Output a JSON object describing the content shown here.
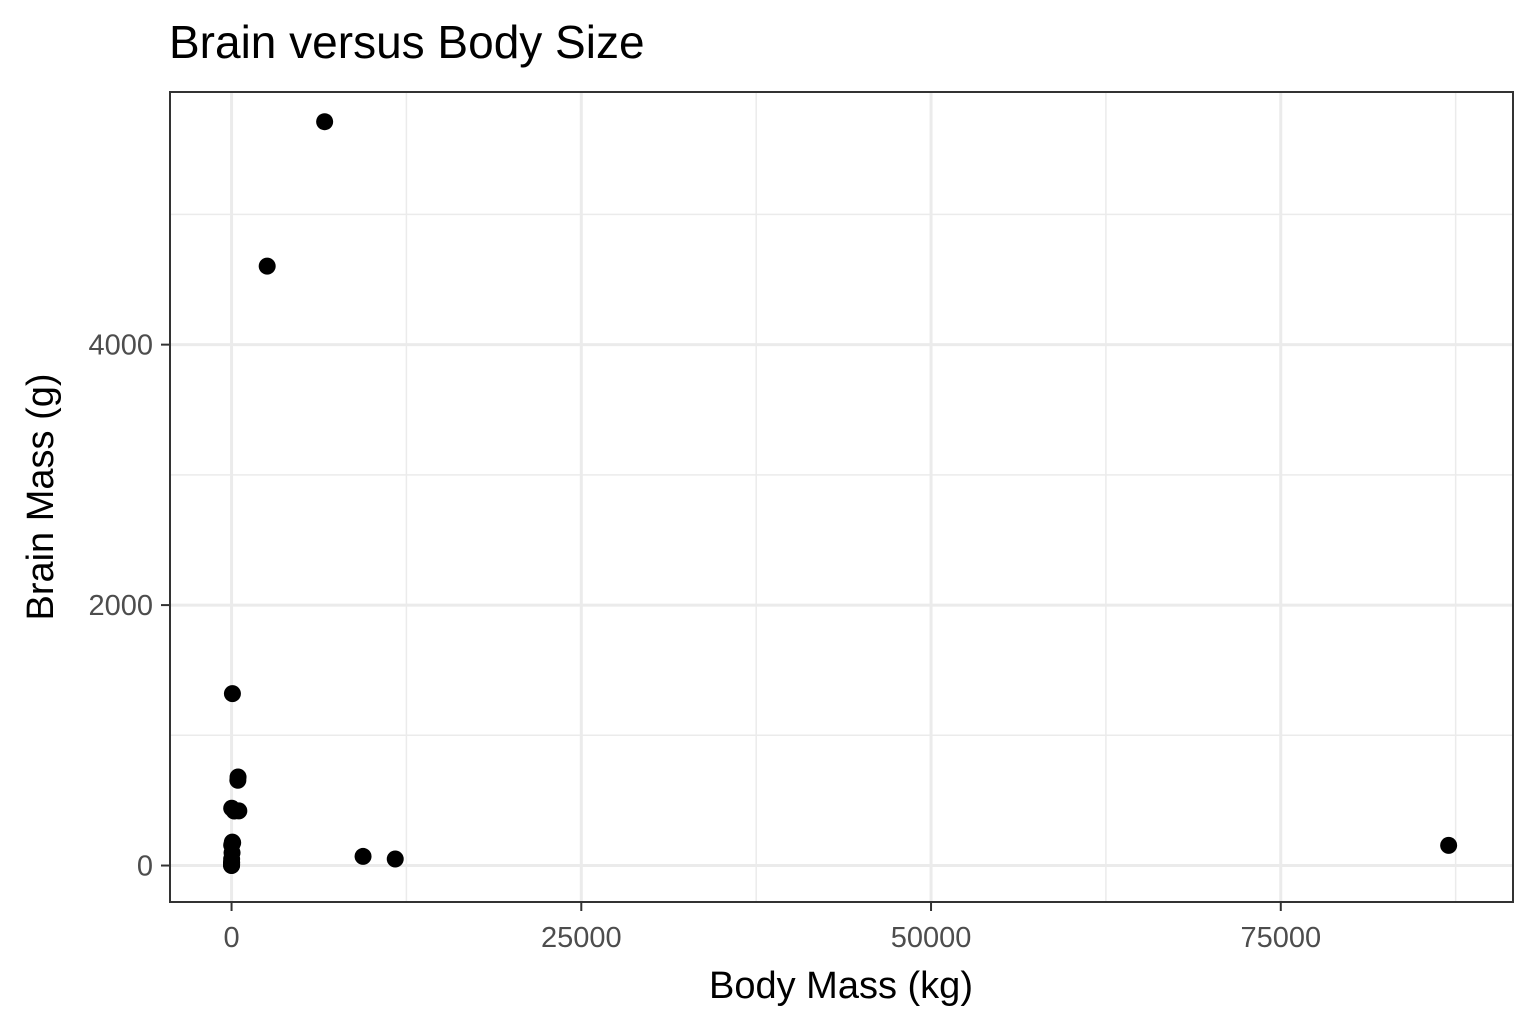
{
  "chart_data": {
    "type": "scatter",
    "title": "Brain versus Body Size",
    "xlabel": "Body Mass (kg)",
    "ylabel": "Brain Mass (g)",
    "xlim": [
      -4400,
      91600
    ],
    "ylim": [
      -280,
      5940
    ],
    "x_ticks": [
      0,
      25000,
      50000,
      75000
    ],
    "x_tick_labels": [
      "0",
      "25000",
      "50000",
      "75000"
    ],
    "x_minor_ticks": [
      12500,
      37500,
      62500,
      87500
    ],
    "y_ticks": [
      0,
      2000,
      4000
    ],
    "y_tick_labels": [
      "0",
      "2000",
      "4000"
    ],
    "y_minor_ticks": [
      1000,
      3000,
      5000
    ],
    "grid": true,
    "points": [
      {
        "x": 6654,
        "y": 5712
      },
      {
        "x": 2547,
        "y": 4603
      },
      {
        "x": 9400,
        "y": 70
      },
      {
        "x": 11700,
        "y": 50
      },
      {
        "x": 87000,
        "y": 155
      },
      {
        "x": 62,
        "y": 1320
      },
      {
        "x": 465,
        "y": 680
      },
      {
        "x": 450,
        "y": 655
      },
      {
        "x": 521,
        "y": 420
      },
      {
        "x": 10,
        "y": 440
      },
      {
        "x": 187,
        "y": 419
      },
      {
        "x": 80,
        "y": 175
      },
      {
        "x": 55,
        "y": 180
      },
      {
        "x": 10,
        "y": 157
      },
      {
        "x": 35,
        "y": 98
      },
      {
        "x": 6.8,
        "y": 50
      },
      {
        "x": 4.2,
        "y": 25
      },
      {
        "x": 1.35,
        "y": 8.1
      },
      {
        "x": 0.48,
        "y": 15.5
      },
      {
        "x": 3.3,
        "y": 25.6
      },
      {
        "x": 0.12,
        "y": 1.0
      },
      {
        "x": 0.023,
        "y": 0.4
      },
      {
        "x": 2.5,
        "y": 12.1
      },
      {
        "x": 0.1,
        "y": 4.0
      }
    ]
  }
}
